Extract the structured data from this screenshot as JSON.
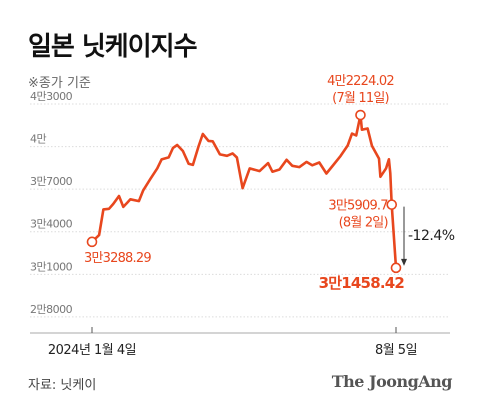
{
  "title": "일본 닛케이지수",
  "subtitle": "※종가 기준",
  "source": "자료: 닛케이",
  "brand": "The JoongAng",
  "colors": {
    "line": "#e8471e",
    "grid": "#dcdcdc",
    "axis": "#aaaaaa"
  },
  "chart_data": {
    "type": "line",
    "title": "일본 닛케이지수",
    "xlabel": "",
    "ylabel": "",
    "grid": true,
    "ylim": [
      27500,
      43000
    ],
    "yticks": [
      {
        "value": 28000,
        "label": "2만8000"
      },
      {
        "value": 31000,
        "label": "3만1000"
      },
      {
        "value": 34000,
        "label": "3만4000"
      },
      {
        "value": 37000,
        "label": "3만7000"
      },
      {
        "value": 40000,
        "label": "4만"
      },
      {
        "value": 43000,
        "label": "4만3000"
      }
    ],
    "xticks": [
      {
        "date": "2024-01-04",
        "label": "2024년 1월 4일"
      },
      {
        "date": "2024-08-05",
        "label": "8월 5일"
      }
    ],
    "series": [
      {
        "points": [
          [
            "2024-01-04",
            33288.29
          ],
          [
            "2024-01-09",
            33763
          ],
          [
            "2024-01-12",
            35577
          ],
          [
            "2024-01-16",
            35619
          ],
          [
            "2024-01-19",
            35963
          ],
          [
            "2024-01-23",
            36517
          ],
          [
            "2024-01-26",
            35751
          ],
          [
            "2024-01-31",
            36287
          ],
          [
            "2024-02-06",
            36160
          ],
          [
            "2024-02-09",
            36897
          ],
          [
            "2024-02-14",
            37703
          ],
          [
            "2024-02-19",
            38470
          ],
          [
            "2024-02-22",
            39098
          ],
          [
            "2024-02-27",
            39239
          ],
          [
            "2024-03-01",
            39910
          ],
          [
            "2024-03-04",
            40109
          ],
          [
            "2024-03-08",
            39688
          ],
          [
            "2024-03-12",
            38797
          ],
          [
            "2024-03-15",
            38707
          ],
          [
            "2024-03-19",
            40003
          ],
          [
            "2024-03-22",
            40888
          ],
          [
            "2024-03-26",
            40398
          ],
          [
            "2024-03-29",
            40369
          ],
          [
            "2024-04-03",
            39451
          ],
          [
            "2024-04-08",
            39347
          ],
          [
            "2024-04-12",
            39523
          ],
          [
            "2024-04-15",
            39232
          ],
          [
            "2024-04-19",
            37068
          ],
          [
            "2024-04-24",
            38460
          ],
          [
            "2024-05-01",
            38274
          ],
          [
            "2024-05-07",
            38835
          ],
          [
            "2024-05-10",
            38229
          ],
          [
            "2024-05-15",
            38385
          ],
          [
            "2024-05-20",
            39069
          ],
          [
            "2024-05-24",
            38646
          ],
          [
            "2024-05-29",
            38556
          ],
          [
            "2024-06-03",
            38923
          ],
          [
            "2024-06-07",
            38683
          ],
          [
            "2024-06-12",
            38876
          ],
          [
            "2024-06-17",
            38102
          ],
          [
            "2024-06-21",
            38596
          ],
          [
            "2024-06-27",
            39341
          ],
          [
            "2024-07-02",
            40074
          ],
          [
            "2024-07-05",
            40912
          ],
          [
            "2024-07-08",
            40780
          ],
          [
            "2024-07-11",
            42224.02
          ],
          [
            "2024-07-12",
            41190
          ],
          [
            "2024-07-16",
            41275
          ],
          [
            "2024-07-19",
            40063
          ],
          [
            "2024-07-24",
            39154
          ],
          [
            "2024-07-25",
            37869
          ],
          [
            "2024-07-29",
            38468
          ],
          [
            "2024-07-31",
            39101
          ],
          [
            "2024-08-01",
            38126
          ],
          [
            "2024-08-02",
            35909.7
          ],
          [
            "2024-08-05",
            31458.42
          ]
        ]
      }
    ],
    "annotations": [
      {
        "date": "2024-01-04",
        "value": 33288.29,
        "lines": [
          "3만3288.29"
        ]
      },
      {
        "date": "2024-07-11",
        "value": 42224.02,
        "lines": [
          "4만2224.02",
          "(7월 11일)"
        ]
      },
      {
        "date": "2024-08-02",
        "value": 35909.7,
        "lines": [
          "3만5909.7",
          "(8월 2일)"
        ]
      },
      {
        "date": "2024-08-05",
        "value": 31458.42,
        "lines": [
          "3만1458.42"
        ]
      }
    ],
    "change_label": "-12.4%"
  }
}
